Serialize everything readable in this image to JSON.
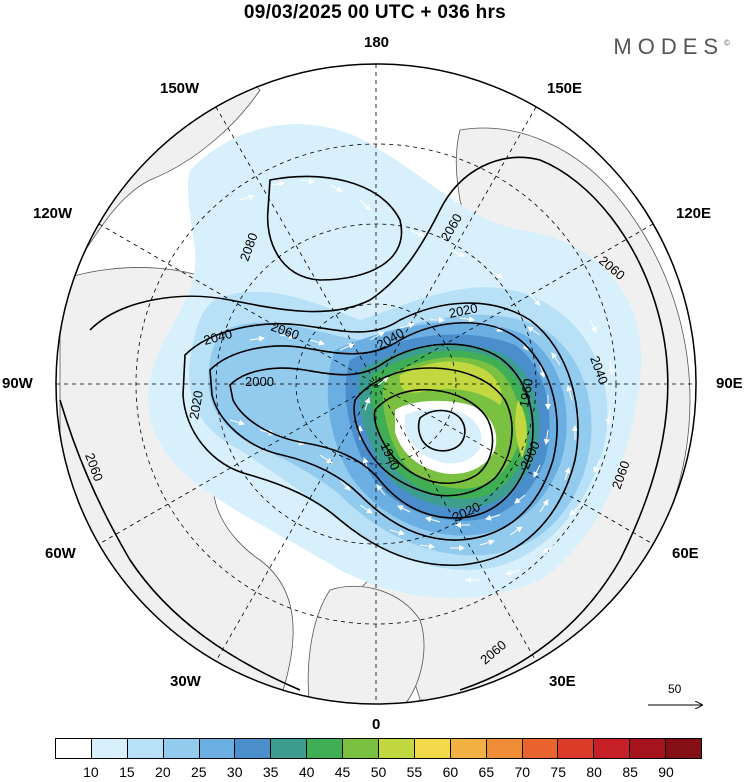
{
  "title": "09/03/2025  00 UTC  + 036 hrs",
  "brand": "MODES",
  "brand_mark": "©",
  "longitude_labels": {
    "top": "180",
    "bottom": "0",
    "left": "90W",
    "right": "90E",
    "upper_left_1": "150W",
    "upper_left_2": "120W",
    "upper_right_1": "150E",
    "upper_right_2": "120E",
    "lower_left_1": "60W",
    "lower_left_2": "30W",
    "lower_right_1": "60E",
    "lower_right_2": "30E"
  },
  "contour_labels": [
    "2080",
    "2060",
    "2060",
    "2060",
    "2040",
    "2040",
    "2020",
    "2020",
    "2000",
    "1960",
    "1940",
    "2000",
    "2020",
    "2040",
    "2060",
    "2060",
    "2060"
  ],
  "wind_vector_scale": "50",
  "colorbar": {
    "ticks": [
      "10",
      "15",
      "20",
      "25",
      "30",
      "35",
      "40",
      "45",
      "50",
      "55",
      "60",
      "65",
      "70",
      "75",
      "80",
      "85",
      "90"
    ],
    "colors": [
      "#ffffff",
      "#d8f0fb",
      "#b8e1f7",
      "#93cbef",
      "#6aaee2",
      "#4a8fcb",
      "#3d9e8f",
      "#3fae55",
      "#7ac142",
      "#c2d841",
      "#f3da4a",
      "#f3b043",
      "#ef8c36",
      "#e8632e",
      "#dc3b2a",
      "#c61f26",
      "#a5141c",
      "#841016"
    ]
  }
}
